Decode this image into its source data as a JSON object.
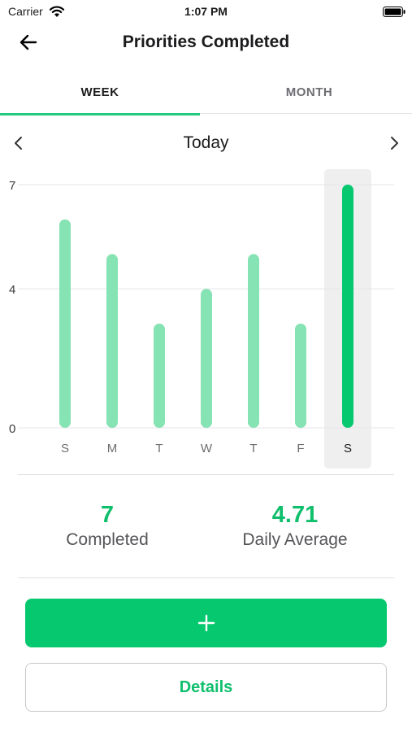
{
  "status_bar": {
    "carrier": "Carrier",
    "time": "1:07 PM"
  },
  "header": {
    "title": "Priorities Completed",
    "back_icon": "arrow-left-icon"
  },
  "tabs": [
    {
      "label": "WEEK",
      "selected": true
    },
    {
      "label": "MONTH",
      "selected": false
    }
  ],
  "period": {
    "label": "Today",
    "prev_icon": "chevron-left-icon",
    "next_icon": "chevron-right-icon"
  },
  "chart_data": {
    "type": "bar",
    "categories": [
      "S",
      "M",
      "T",
      "W",
      "T",
      "F",
      "S"
    ],
    "values": [
      6,
      5,
      3,
      4,
      5,
      3,
      7
    ],
    "yticks": [
      0,
      4,
      7
    ],
    "ylim": [
      0,
      7
    ],
    "selected_index": 6,
    "grid": true,
    "bar_color": "#86e3b3",
    "selected_bar_color": "#06c96f",
    "highlight_color": "#efeff0"
  },
  "stats": {
    "completed": {
      "value": "7",
      "label": "Completed"
    },
    "average": {
      "value": "4.71",
      "label": "Daily Average"
    }
  },
  "actions": {
    "add_icon": "plus-icon",
    "details_label": "Details"
  },
  "colors": {
    "accent": "#06c96f",
    "accent_text": "#0fbf6c"
  }
}
